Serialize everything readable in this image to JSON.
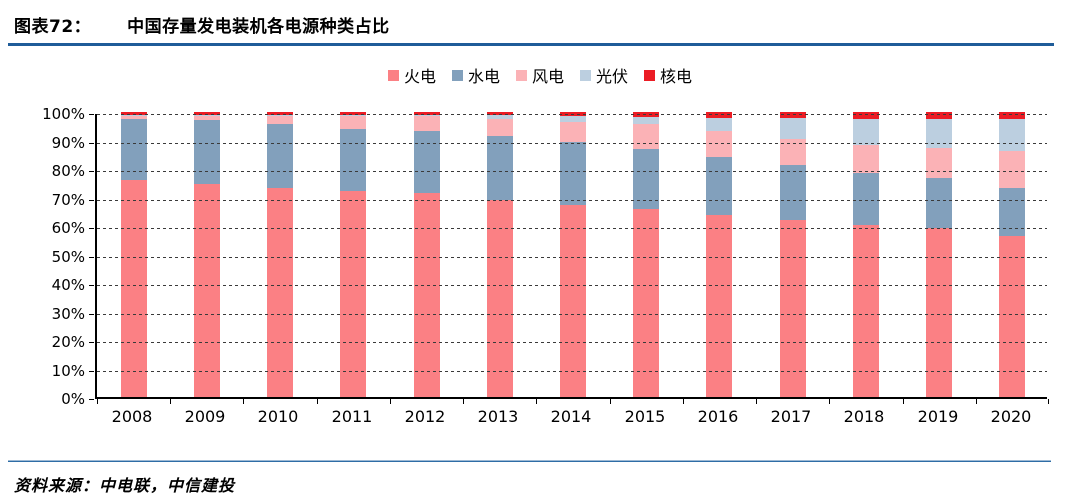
{
  "header": {
    "figure_label": "图表72：",
    "figure_title": "中国存量发电装机各电源种类占比"
  },
  "footer": {
    "source_text": "资料来源：中电联，中信建投"
  },
  "colors": {
    "header_rule": "#1F5C99",
    "footer_rule": "#2E6DA6",
    "axis": "#000000",
    "gridline": "#3A3A3A",
    "thermal": "#FB8084",
    "hydro": "#82A0BC",
    "wind": "#FBB2B6",
    "solar": "#BCCFE0",
    "nuclear": "#EB1C24"
  },
  "chart_data": {
    "type": "bar",
    "stacked": true,
    "title": "中国存量发电装机各电源种类占比",
    "xlabel": "",
    "ylabel": "",
    "unit": "%",
    "ylim": [
      0,
      100
    ],
    "yticks": [
      0,
      10,
      20,
      30,
      40,
      50,
      60,
      70,
      80,
      90,
      100
    ],
    "ytick_suffix": "%",
    "grid": "dashed-horizontal-overlay",
    "legend_position": "top-center",
    "categories": [
      "2008",
      "2009",
      "2010",
      "2011",
      "2012",
      "2013",
      "2014",
      "2015",
      "2016",
      "2017",
      "2018",
      "2019",
      "2020"
    ],
    "series": [
      {
        "name": "火电",
        "color": "#FB8084",
        "values": [
          76.0,
          74.6,
          73.4,
          72.3,
          71.5,
          69.2,
          67.4,
          65.9,
          64.0,
          62.2,
          60.2,
          59.2,
          56.6
        ]
      },
      {
        "name": "水电",
        "color": "#82A0BC",
        "values": [
          21.6,
          22.5,
          22.4,
          21.9,
          21.7,
          22.3,
          22.1,
          21.2,
          20.2,
          19.3,
          18.5,
          17.7,
          16.8
        ]
      },
      {
        "name": "风电",
        "color": "#FBB2B6",
        "values": [
          1.1,
          1.9,
          3.1,
          4.4,
          5.4,
          6.0,
          7.0,
          8.6,
          9.0,
          9.2,
          9.7,
          10.4,
          12.8
        ]
      },
      {
        "name": "光伏",
        "color": "#BCCFE0",
        "values": [
          0.1,
          0.1,
          0.1,
          0.2,
          0.3,
          1.3,
          2.0,
          2.5,
          4.7,
          7.3,
          9.2,
          10.3,
          11.5
        ]
      },
      {
        "name": "核电",
        "color": "#EB1C24",
        "values": [
          1.2,
          1.0,
          1.1,
          1.2,
          1.1,
          1.2,
          1.5,
          1.8,
          2.1,
          2.0,
          2.4,
          2.4,
          2.3
        ]
      }
    ]
  }
}
